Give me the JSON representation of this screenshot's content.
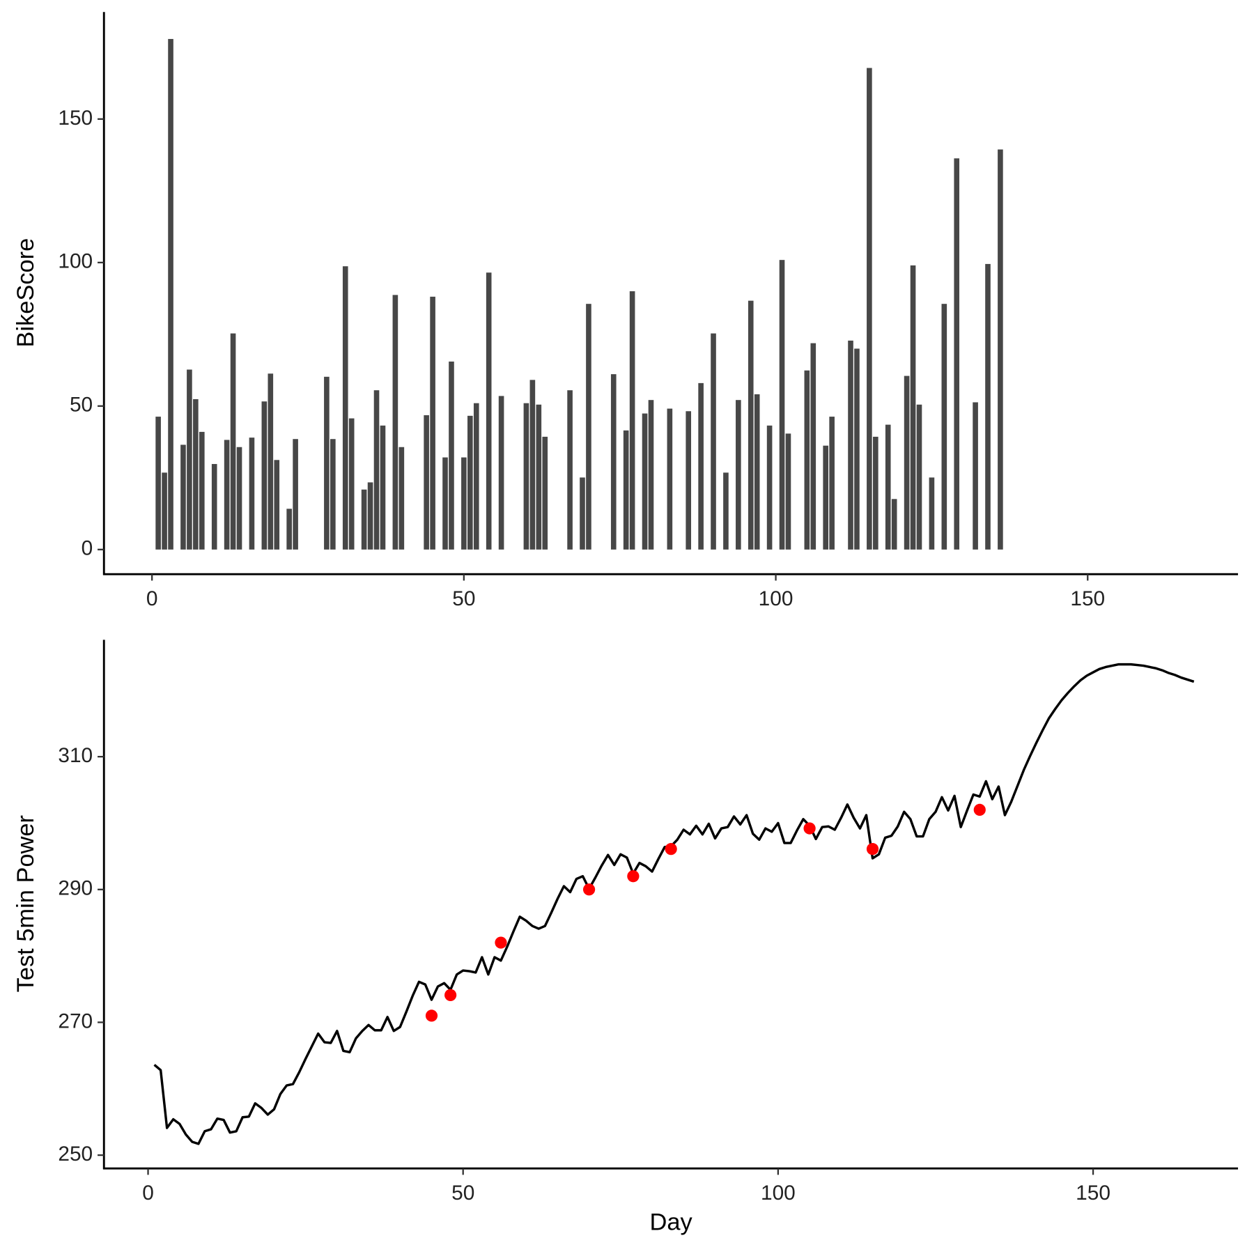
{
  "chart_data": [
    {
      "type": "bar",
      "ylabel": "BikeScore",
      "color": "#474747",
      "x": [
        1,
        2,
        3,
        5,
        6,
        7,
        8,
        10,
        12,
        13,
        14,
        16,
        18,
        19,
        20,
        22,
        23,
        28,
        29,
        31,
        32,
        34,
        35,
        36,
        37,
        39,
        40,
        44,
        45,
        47,
        48,
        50,
        51,
        52,
        54,
        56,
        60,
        61,
        62,
        63,
        67,
        69,
        70,
        74,
        76,
        77,
        79,
        80,
        83,
        86,
        88,
        90,
        92,
        94,
        96,
        97,
        99,
        101,
        102,
        105,
        106,
        108,
        109,
        112,
        113,
        115,
        116,
        118,
        119,
        121,
        122,
        123,
        125,
        127,
        129,
        132,
        134,
        136
      ],
      "values": [
        46.3,
        26.8,
        177.9,
        36.5,
        62.7,
        52.4,
        41,
        29.8,
        38.2,
        75.3,
        35.7,
        39,
        51.6,
        61.3,
        31.2,
        14.2,
        38.5,
        60.2,
        38.5,
        98.7,
        45.7,
        20.9,
        23.4,
        55.5,
        43.2,
        88.7,
        35.7,
        46.8,
        88.1,
        32.1,
        65.5,
        32.1,
        46.6,
        51,
        96.5,
        53.5,
        51,
        59.1,
        50.5,
        39.3,
        55.5,
        25.1,
        85.6,
        61.1,
        41.5,
        90,
        47.4,
        52.1,
        49.1,
        48.2,
        58,
        75.3,
        26.8,
        52.1,
        86.7,
        54.1,
        43.2,
        100.9,
        40.4,
        62.4,
        71.9,
        36.2,
        46.3,
        72.8,
        70,
        167.8,
        39.3,
        43.5,
        17.6,
        60.5,
        99,
        50.5,
        25.1,
        85.6,
        136.3,
        51.3,
        99.5,
        139.4
      ],
      "xlim": [
        -7.7,
        174.1
      ],
      "xticks": [
        0,
        50,
        100,
        150
      ],
      "ylim": [
        -8.6,
        187.3
      ],
      "yticks": [
        0,
        50,
        100,
        150
      ]
    },
    {
      "type": "line",
      "ylabel": "Test 5min Power",
      "xlabel": "Day",
      "color": "#000000",
      "x": [
        1,
        2,
        3,
        4,
        5,
        6,
        7,
        8,
        9,
        10,
        11,
        12,
        13,
        14,
        15,
        16,
        17,
        18,
        19,
        20,
        21,
        22,
        23,
        24,
        25,
        26,
        27,
        28,
        29,
        30,
        31,
        32,
        33,
        34,
        35,
        36,
        37,
        38,
        39,
        40,
        41,
        42,
        43,
        44,
        45,
        46,
        47,
        48,
        49,
        50,
        51,
        52,
        53,
        54,
        55,
        56,
        57,
        58,
        59,
        60,
        61,
        62,
        63,
        64,
        65,
        66,
        67,
        68,
        69,
        70,
        71,
        72,
        73,
        74,
        75,
        76,
        77,
        78,
        79,
        80,
        81,
        82,
        83,
        84,
        85,
        86,
        87,
        88,
        89,
        90,
        91,
        92,
        93,
        94,
        95,
        96,
        97,
        98,
        99,
        100,
        101,
        102,
        103,
        104,
        105,
        106,
        107,
        108,
        109,
        110,
        111,
        112,
        113,
        114,
        115,
        116,
        117,
        118,
        119,
        120,
        121,
        122,
        123,
        124,
        125,
        126,
        127,
        128,
        129,
        130,
        131,
        132,
        133,
        134,
        135,
        136,
        137,
        138,
        139,
        140,
        141,
        142,
        143,
        144,
        145,
        146,
        147,
        148,
        149,
        150,
        151,
        152,
        153,
        154,
        155,
        156,
        157,
        158,
        159,
        160,
        161,
        162,
        163,
        164,
        165,
        166
      ],
      "values": [
        263.6,
        262.8,
        254.1,
        255.4,
        254.7,
        253.1,
        252.0,
        251.7,
        253.6,
        253.9,
        255.5,
        255.3,
        253.4,
        253.6,
        255.7,
        255.8,
        257.8,
        257.1,
        256.1,
        256.9,
        259.2,
        260.5,
        260.7,
        262.5,
        264.5,
        266.4,
        268.3,
        267.0,
        266.9,
        268.7,
        265.7,
        265.5,
        267.6,
        268.7,
        269.6,
        268.8,
        268.8,
        270.8,
        268.7,
        269.3,
        271.6,
        274.0,
        276.1,
        275.7,
        273.4,
        275.4,
        275.9,
        274.9,
        277.2,
        277.8,
        277.7,
        277.5,
        279.8,
        277.2,
        279.8,
        279.3,
        281.4,
        283.7,
        285.9,
        285.3,
        284.5,
        284.1,
        284.5,
        286.5,
        288.6,
        290.5,
        289.6,
        291.6,
        292.0,
        290.1,
        291.8,
        293.6,
        295.2,
        293.7,
        295.3,
        294.8,
        292.4,
        294.0,
        293.5,
        292.7,
        294.6,
        296.4,
        296.5,
        297.5,
        299.0,
        298.3,
        299.6,
        298.3,
        299.9,
        297.7,
        299.2,
        299.4,
        301.0,
        299.8,
        301.2,
        298.4,
        297.5,
        299.2,
        298.7,
        300.0,
        297.0,
        297.0,
        298.9,
        300.6,
        299.6,
        297.6,
        299.4,
        299.5,
        299.0,
        300.8,
        302.8,
        300.8,
        299.2,
        301.2,
        294.7,
        295.3,
        297.8,
        298.1,
        299.5,
        301.7,
        300.6,
        298.0,
        298.0,
        300.6,
        301.7,
        303.9,
        301.9,
        304.1,
        299.4,
        301.9,
        304.3,
        304.0,
        306.3,
        303.6,
        305.5,
        301.2,
        303.2,
        305.6,
        308.0,
        310.1,
        312.1,
        314.0,
        315.8,
        317.2,
        318.5,
        319.6,
        320.6,
        321.5,
        322.2,
        322.7,
        323.2,
        323.5,
        323.7,
        323.9,
        323.9,
        323.9,
        323.8,
        323.7,
        323.5,
        323.3,
        323.0,
        322.6,
        322.3,
        321.9,
        321.6,
        321.3
      ],
      "points": {
        "type": "scatter",
        "color": "#ff0000",
        "x": [
          45,
          48,
          56,
          70,
          77,
          83,
          105,
          115,
          132
        ],
        "values": [
          271.0,
          274.1,
          282.0,
          290.0,
          292.0,
          296.1,
          299.2,
          296.1,
          302.0
        ]
      },
      "xlim": [
        -7,
        173
      ],
      "xticks": [
        0,
        50,
        100,
        150
      ],
      "ylim": [
        248,
        327.6
      ],
      "yticks": [
        250,
        270,
        290,
        310
      ]
    }
  ]
}
